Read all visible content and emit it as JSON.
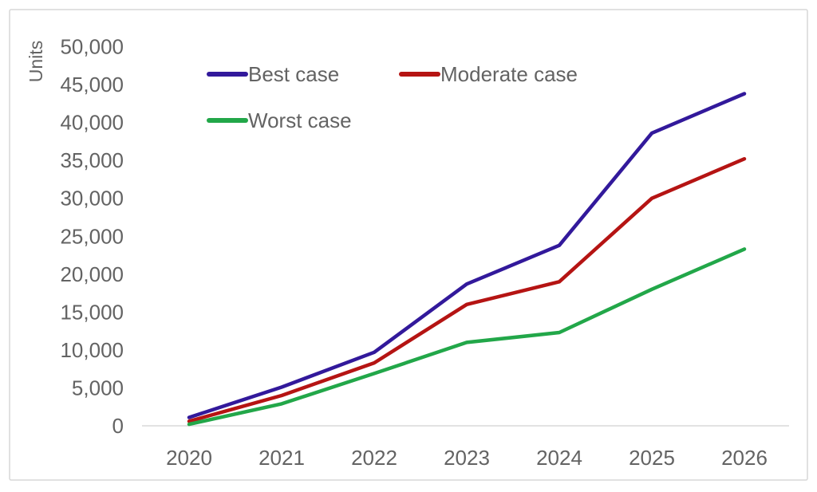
{
  "chart_data": {
    "type": "line",
    "title": "",
    "xlabel": "",
    "ylabel": "Units",
    "x": [
      "2020",
      "2021",
      "2022",
      "2023",
      "2024",
      "2025",
      "2026"
    ],
    "series": [
      {
        "name": "Best case",
        "color": "#32199B",
        "values": [
          1100,
          5100,
          9700,
          18700,
          23800,
          38600,
          43800
        ]
      },
      {
        "name": "Moderate case",
        "color": "#B51413",
        "values": [
          600,
          4000,
          8300,
          16000,
          19000,
          30000,
          35200
        ]
      },
      {
        "name": "Worst case",
        "color": "#22A749",
        "values": [
          200,
          2900,
          6900,
          11000,
          12300,
          18000,
          23300
        ]
      }
    ],
    "ylim": [
      0,
      50000
    ],
    "ytick_step": 5000,
    "y_tick_labels": [
      "0",
      "5,000",
      "10,000",
      "15,000",
      "20,000",
      "25,000",
      "30,000",
      "35,000",
      "40,000",
      "45,000",
      "50,000"
    ],
    "grid": false,
    "legend_position": "inside-top-left",
    "legend": [
      "Best case",
      "Moderate case",
      "Worst case"
    ],
    "colors": {
      "axis_text": "#636363",
      "legend_text": "#636363",
      "axis_line": "#D9D9D9",
      "frame_border": "#D7D7D7",
      "background": "#FFFFFF"
    }
  }
}
